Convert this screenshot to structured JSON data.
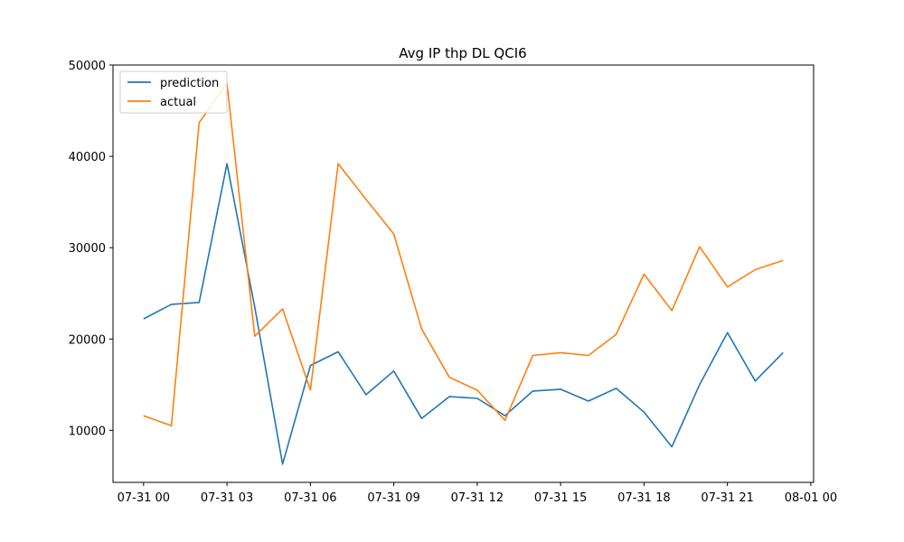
{
  "chart_data": {
    "type": "line",
    "title": "Avg IP thp DL QCI6",
    "xlabel": "",
    "ylabel": "",
    "x_ticks": [
      "07-31 00",
      "07-31 03",
      "07-31 06",
      "07-31 09",
      "07-31 12",
      "07-31 15",
      "07-31 18",
      "07-31 21",
      "08-01 00"
    ],
    "x_tick_hours": [
      0,
      3,
      6,
      9,
      12,
      15,
      18,
      21,
      24
    ],
    "xlim_hours": [
      -1.1,
      24.1
    ],
    "y_ticks": [
      10000,
      20000,
      30000,
      40000,
      50000
    ],
    "ylim": [
      4300,
      50000
    ],
    "x_hours": [
      0,
      1,
      2,
      3,
      4,
      5,
      6,
      7,
      8,
      9,
      10,
      11,
      12,
      13,
      14,
      15,
      16,
      17,
      18,
      19,
      20,
      21,
      22,
      23
    ],
    "series": [
      {
        "name": "prediction",
        "color": "#1f77b4",
        "values": [
          22200,
          23800,
          24000,
          39200,
          23500,
          6300,
          17100,
          18600,
          13900,
          16500,
          11300,
          13700,
          13500,
          11600,
          14300,
          14500,
          13200,
          14600,
          12000,
          8200,
          15000,
          20700,
          15400,
          18500
        ]
      },
      {
        "name": "actual",
        "color": "#ff7f0e",
        "values": [
          11600,
          10500,
          43700,
          48000,
          20300,
          23300,
          14400,
          39200,
          35300,
          31500,
          21100,
          15800,
          14400,
          11100,
          18200,
          18500,
          18200,
          20500,
          27100,
          23100,
          30100,
          25700,
          27600,
          28600
        ]
      }
    ],
    "grid": false,
    "legend_position": "top-left"
  }
}
